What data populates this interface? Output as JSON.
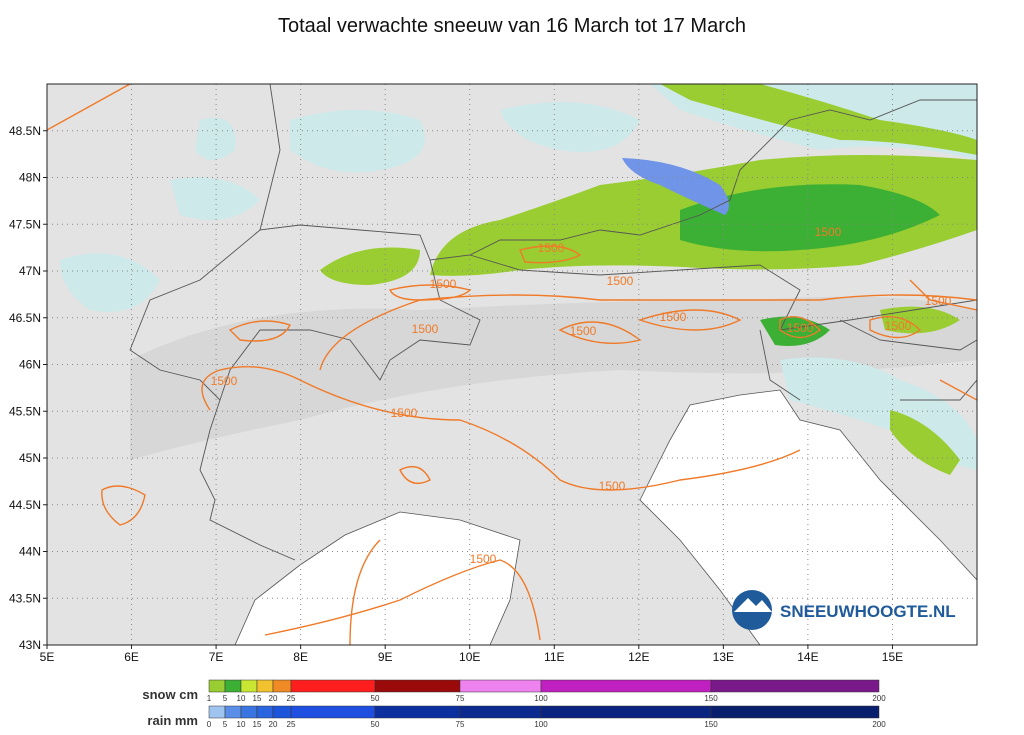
{
  "title": "Totaal verwachte sneeuw van 16 March tot 17 March",
  "map": {
    "xlim": [
      5,
      16
    ],
    "ylim": [
      43,
      49
    ],
    "xticks": [
      {
        "value": 5,
        "label": "5E"
      },
      {
        "value": 6,
        "label": "6E"
      },
      {
        "value": 7,
        "label": "7E"
      },
      {
        "value": 8,
        "label": "8E"
      },
      {
        "value": 9,
        "label": "9E"
      },
      {
        "value": 10,
        "label": "10E"
      },
      {
        "value": 11,
        "label": "11E"
      },
      {
        "value": 12,
        "label": "12E"
      },
      {
        "value": 13,
        "label": "13E"
      },
      {
        "value": 14,
        "label": "14E"
      },
      {
        "value": 15,
        "label": "15E"
      }
    ],
    "yticks": [
      {
        "value": 43,
        "label": "43N"
      },
      {
        "value": 43.5,
        "label": "43.5N"
      },
      {
        "value": 44,
        "label": "44N"
      },
      {
        "value": 44.5,
        "label": "44.5N"
      },
      {
        "value": 45,
        "label": "45N"
      },
      {
        "value": 45.5,
        "label": "45.5N"
      },
      {
        "value": 46,
        "label": "46N"
      },
      {
        "value": 46.5,
        "label": "46.5N"
      },
      {
        "value": 47,
        "label": "47N"
      },
      {
        "value": 47.5,
        "label": "47.5N"
      },
      {
        "value": 48,
        "label": "48N"
      },
      {
        "value": 48.5,
        "label": "48.5N"
      }
    ],
    "contour_labels": [
      "1500",
      "1500",
      "1500",
      "1500",
      "1500",
      "1500",
      "1500",
      "1500",
      "1500",
      "1500",
      "1500",
      "1500",
      "1500",
      "1500"
    ],
    "logo": "SNEEUWHOOGTE.NL"
  },
  "legend": {
    "snow": {
      "label": "snow cm",
      "ticks": [
        "1",
        "5",
        "10",
        "15",
        "20",
        "25",
        "50",
        "75",
        "100",
        "150",
        "200"
      ],
      "colors": [
        "#9acd32",
        "#3cb034",
        "#c8e632",
        "#f2c12e",
        "#f08a24",
        "#ff1e1e",
        "#9b0a0a",
        "#ee82ee",
        "#c020c0",
        "#7a1a8a"
      ]
    },
    "rain": {
      "label": "rain mm",
      "ticks": [
        "0",
        "5",
        "10",
        "15",
        "20",
        "25",
        "50",
        "75",
        "100",
        "150",
        "200"
      ],
      "colors": [
        "#a0c4f0",
        "#5a8ee8",
        "#3a74e0",
        "#2a64e0",
        "#1c54dc",
        "#1f4fe0",
        "#0b2f9e",
        "#0a2a90",
        "#0a2580",
        "#071f6c"
      ]
    }
  }
}
